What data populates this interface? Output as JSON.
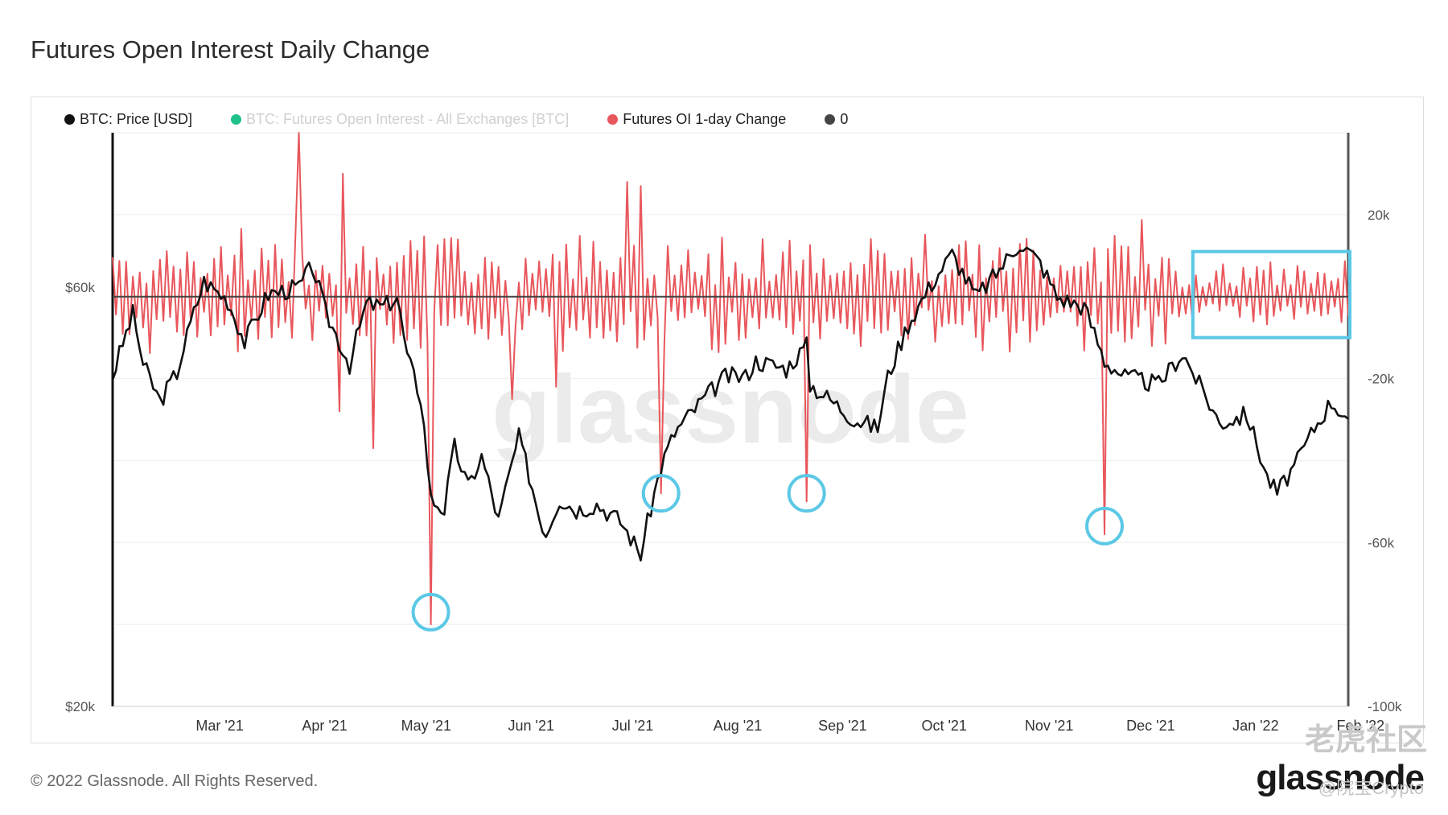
{
  "title": "Futures Open Interest Daily Change",
  "legend": [
    {
      "label": "BTC: Price [USD]",
      "color": "#111111",
      "faded": false
    },
    {
      "label": "BTC: Futures Open Interest - All Exchanges [BTC]",
      "color": "#1fc38a",
      "faded": true
    },
    {
      "label": "Futures OI 1-day Change",
      "color": "#e8575c",
      "faded": false
    },
    {
      "label": "0",
      "color": "#444444",
      "faded": false
    }
  ],
  "footer": "© 2022 Glassnode. All Rights Reserved.",
  "brand": "glassnode",
  "watermarks": {
    "main": "glassnode",
    "corner": "老虎社区",
    "handle": "@院宝Crypto"
  },
  "colors": {
    "price": "#111111",
    "oi_change": "#e8575c",
    "zero_line": "#444444",
    "highlight": "#5bc8e6",
    "grid": "#eeeeee"
  },
  "chart_data": {
    "type": "line",
    "x_range": [
      "2021-02-14",
      "2022-02-14"
    ],
    "x_ticks": [
      "Mar '21",
      "Apr '21",
      "May '21",
      "Jun '21",
      "Jul '21",
      "Aug '21",
      "Sep '21",
      "Oct '21",
      "Nov '21",
      "Dec '21",
      "Jan '22",
      "Feb '22"
    ],
    "y_left": {
      "label": "",
      "scale": "log",
      "range": [
        20000,
        90000
      ],
      "ticks": [
        "$20k",
        "$60k"
      ]
    },
    "y_right": {
      "label": "",
      "range": [
        -100000,
        40000
      ],
      "ticks": [
        "20k",
        "-20k",
        "-60k",
        "-100k"
      ]
    },
    "series": [
      {
        "name": "BTC: Price [USD]",
        "axis": "left",
        "points": [
          [
            "2021-02-14",
            47500
          ],
          [
            "2021-02-20",
            56000
          ],
          [
            "2021-02-23",
            49000
          ],
          [
            "2021-02-28",
            44500
          ],
          [
            "2021-03-05",
            48000
          ],
          [
            "2021-03-13",
            61000
          ],
          [
            "2021-03-20",
            58000
          ],
          [
            "2021-03-25",
            52000
          ],
          [
            "2021-04-01",
            59000
          ],
          [
            "2021-04-10",
            60000
          ],
          [
            "2021-04-14",
            63500
          ],
          [
            "2021-04-18",
            56000
          ],
          [
            "2021-04-25",
            49000
          ],
          [
            "2021-04-30",
            57500
          ],
          [
            "2021-05-05",
            57000
          ],
          [
            "2021-05-09",
            58500
          ],
          [
            "2021-05-12",
            50000
          ],
          [
            "2021-05-16",
            45000
          ],
          [
            "2021-05-19",
            34500
          ],
          [
            "2021-05-23",
            33500
          ],
          [
            "2021-05-26",
            39500
          ],
          [
            "2021-05-30",
            35500
          ],
          [
            "2021-06-03",
            38500
          ],
          [
            "2021-06-08",
            32500
          ],
          [
            "2021-06-14",
            40500
          ],
          [
            "2021-06-20",
            33000
          ],
          [
            "2021-06-22",
            31500
          ],
          [
            "2021-06-26",
            34500
          ],
          [
            "2021-07-01",
            33500
          ],
          [
            "2021-07-07",
            34000
          ],
          [
            "2021-07-14",
            32500
          ],
          [
            "2021-07-20",
            29800
          ],
          [
            "2021-07-26",
            37500
          ],
          [
            "2021-07-30",
            41000
          ],
          [
            "2021-08-07",
            44500
          ],
          [
            "2021-08-14",
            47500
          ],
          [
            "2021-08-20",
            47500
          ],
          [
            "2021-08-23",
            49500
          ],
          [
            "2021-09-01",
            48500
          ],
          [
            "2021-09-07",
            51500
          ],
          [
            "2021-09-08",
            46500
          ],
          [
            "2021-09-13",
            45000
          ],
          [
            "2021-09-21",
            42500
          ],
          [
            "2021-09-28",
            41500
          ],
          [
            "2021-10-01",
            47500
          ],
          [
            "2021-10-07",
            54500
          ],
          [
            "2021-10-15",
            61500
          ],
          [
            "2021-10-20",
            65500
          ],
          [
            "2021-10-27",
            58500
          ],
          [
            "2021-11-01",
            61500
          ],
          [
            "2021-11-09",
            67500
          ],
          [
            "2021-11-15",
            64000
          ],
          [
            "2021-11-20",
            58500
          ],
          [
            "2021-11-28",
            57000
          ],
          [
            "2021-12-04",
            49500
          ],
          [
            "2021-12-10",
            47500
          ],
          [
            "2021-12-20",
            46500
          ],
          [
            "2021-12-27",
            50500
          ],
          [
            "2022-01-01",
            46500
          ],
          [
            "2022-01-07",
            42000
          ],
          [
            "2022-01-15",
            43000
          ],
          [
            "2022-01-21",
            36500
          ],
          [
            "2022-01-24",
            35000
          ],
          [
            "2022-01-30",
            38000
          ],
          [
            "2022-02-04",
            41500
          ],
          [
            "2022-02-09",
            44500
          ],
          [
            "2022-02-14",
            42500
          ]
        ]
      },
      {
        "name": "Futures OI 1-day Change",
        "axis": "right",
        "spikes": [
          [
            "2021-05-19",
            -80000
          ],
          [
            "2021-07-26",
            -48000
          ],
          [
            "2021-09-07",
            -50000
          ],
          [
            "2021-12-04",
            -58000
          ],
          [
            "2021-04-10",
            40000
          ],
          [
            "2021-04-23",
            30000
          ],
          [
            "2021-07-16",
            28000
          ],
          [
            "2021-07-20",
            27000
          ],
          [
            "2021-05-02",
            -37000
          ],
          [
            "2021-04-22",
            -28000
          ],
          [
            "2021-02-29",
            -22000
          ],
          [
            "2021-06-12",
            -25000
          ],
          [
            "2021-06-25",
            -22000
          ]
        ],
        "amplitude_pos": [
          8000,
          16000
        ],
        "amplitude_neg": [
          -8000,
          -12000
        ]
      }
    ],
    "zero_line": {
      "name": "0",
      "value": 0,
      "axis": "right"
    },
    "annotations": [
      {
        "type": "circle",
        "x": "2021-05-19",
        "y": -77000,
        "axis": "right"
      },
      {
        "type": "circle",
        "x": "2021-07-26",
        "y": -48000,
        "axis": "right"
      },
      {
        "type": "circle",
        "x": "2021-09-07",
        "y": -48000,
        "axis": "right"
      },
      {
        "type": "circle",
        "x": "2021-12-04",
        "y": -56000,
        "axis": "right"
      },
      {
        "type": "rect",
        "x": [
          "2022-01-01",
          "2022-02-14"
        ],
        "y": [
          -10000,
          11000
        ],
        "axis": "right"
      }
    ],
    "grid": true,
    "legend_position": "top-left"
  }
}
